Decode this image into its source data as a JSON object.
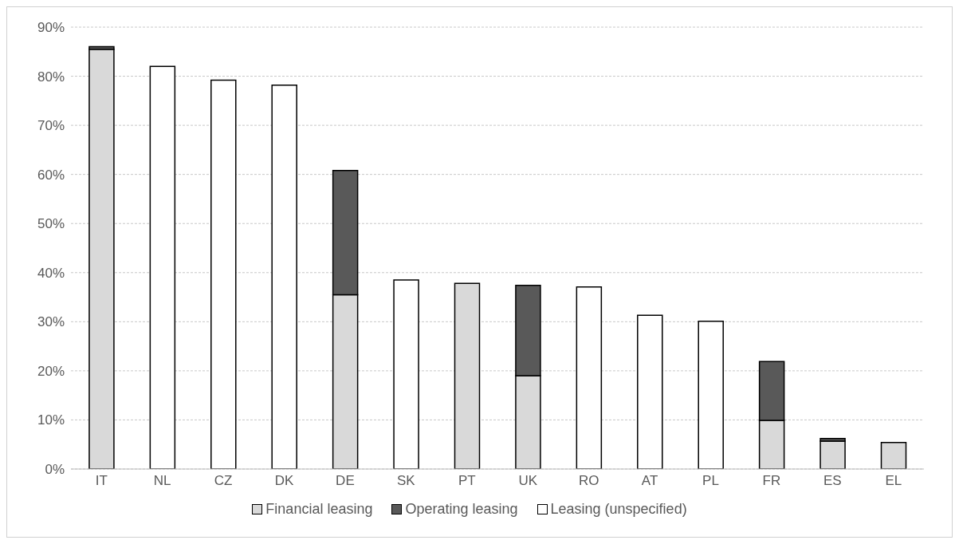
{
  "chart_data": {
    "type": "bar",
    "stacked": true,
    "categories": [
      "IT",
      "NL",
      "CZ",
      "DK",
      "DE",
      "SK",
      "PT",
      "UK",
      "RO",
      "AT",
      "PL",
      "FR",
      "ES",
      "EL"
    ],
    "series": [
      {
        "name": "Financial leasing",
        "color": "#d9d9d9",
        "values": [
          85.5,
          null,
          null,
          null,
          35.5,
          null,
          37.8,
          19.0,
          null,
          null,
          null,
          9.9,
          5.7,
          5.4
        ]
      },
      {
        "name": "Operating leasing",
        "color": "#595959",
        "values": [
          0.5,
          null,
          null,
          null,
          25.3,
          null,
          null,
          18.4,
          null,
          null,
          null,
          12.0,
          0.5,
          null
        ]
      },
      {
        "name": "Leasing (unspecified)",
        "color": "#ffffff",
        "values": [
          null,
          82.0,
          79.2,
          78.2,
          null,
          38.5,
          null,
          null,
          37.1,
          31.3,
          30.1,
          null,
          null,
          null
        ]
      }
    ],
    "ylim": [
      0,
      90
    ],
    "yticks": [
      {
        "value": 0,
        "label": "0%"
      },
      {
        "value": 10,
        "label": "10%"
      },
      {
        "value": 20,
        "label": "20%"
      },
      {
        "value": 30,
        "label": "30%"
      },
      {
        "value": 40,
        "label": "40%"
      },
      {
        "value": 50,
        "label": "50%"
      },
      {
        "value": 60,
        "label": "60%"
      },
      {
        "value": 70,
        "label": "70%"
      },
      {
        "value": 80,
        "label": "80%"
      },
      {
        "value": 90,
        "label": "90%"
      }
    ],
    "grid": "y",
    "legend": "bottom"
  }
}
